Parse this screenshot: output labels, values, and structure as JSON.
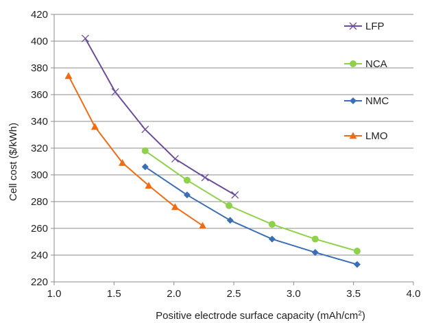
{
  "chart_data": {
    "type": "line",
    "xlabel": "Positive electrode surface capacity (mAh/cm",
    "xlabel_sup": "2",
    "xlabel_tail": ")",
    "ylabel": "Cell cost ($/kWh)",
    "xlim": [
      1.0,
      4.0
    ],
    "ylim": [
      220,
      420
    ],
    "xticks": [
      "1.0",
      "1.5",
      "2.0",
      "2.5",
      "3.0",
      "3.5",
      "4.0"
    ],
    "yticks": [
      "220",
      "240",
      "260",
      "280",
      "300",
      "320",
      "340",
      "360",
      "380",
      "400",
      "420"
    ],
    "grid": "horizontal",
    "legend_position": "right",
    "series": [
      {
        "name": "LFP",
        "color": "#6b4c9a",
        "marker": "x",
        "x": [
          1.26,
          1.51,
          1.76,
          2.01,
          2.26,
          2.51
        ],
        "y": [
          402,
          362,
          334,
          312,
          298,
          285
        ]
      },
      {
        "name": "NCA",
        "color": "#8dd24a",
        "marker": "circle",
        "x": [
          1.76,
          2.11,
          2.46,
          2.82,
          3.18,
          3.53
        ],
        "y": [
          318,
          296,
          277,
          263,
          252,
          243
        ]
      },
      {
        "name": "NMC",
        "color": "#3a6fb5",
        "marker": "diamond",
        "x": [
          1.76,
          2.11,
          2.47,
          2.82,
          3.18,
          3.53
        ],
        "y": [
          306,
          285,
          266,
          252,
          242,
          233
        ]
      },
      {
        "name": "LMO",
        "color": "#ef6b14",
        "marker": "triangle",
        "x": [
          1.12,
          1.34,
          1.57,
          1.79,
          2.01,
          2.24
        ],
        "y": [
          374,
          336,
          309,
          292,
          276,
          262
        ]
      }
    ]
  }
}
